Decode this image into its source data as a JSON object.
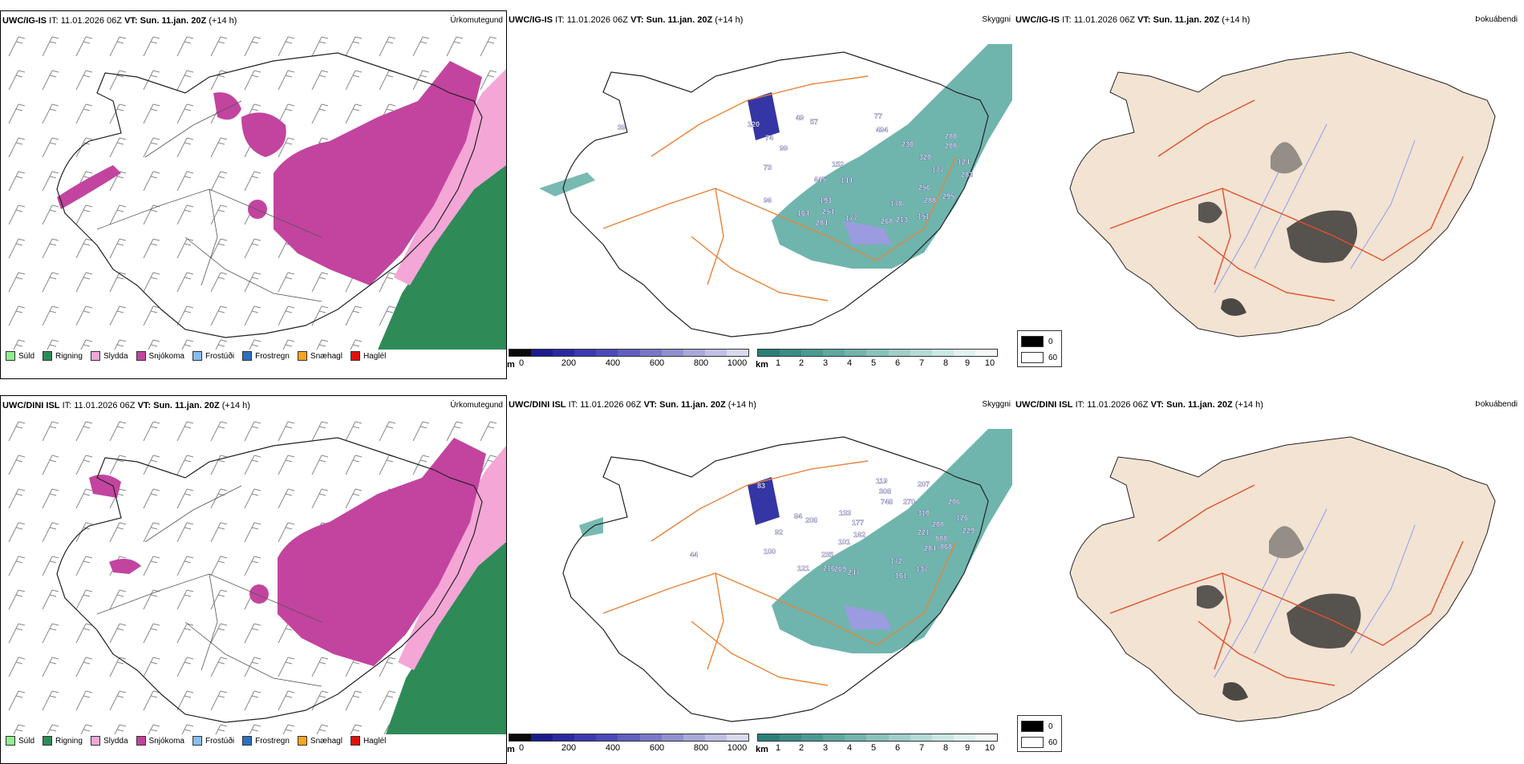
{
  "rows": [
    {
      "model": "UWC/IG-IS",
      "init_label": "IT:",
      "init_time": "11.01.2026 06Z",
      "valid_label": "VT:",
      "valid_time": "Sun. 11.jan. 20Z",
      "lead": "(+14 h)",
      "panel1_type": "Úrkomutegund",
      "panel2_type": "Skyggni",
      "panel3_type": "Þokuábendi",
      "visibility_labels": [
        "120",
        "74",
        "99",
        "73",
        "49",
        "152",
        "645",
        "144",
        "193",
        "254",
        "284",
        "164",
        "177",
        "268",
        "213",
        "96",
        "178",
        "151",
        "256",
        "288",
        "295",
        "280",
        "208",
        "124",
        "283",
        "177",
        "320",
        "77",
        "494",
        "230",
        "57",
        "39"
      ]
    },
    {
      "model": "UWC/DINI ISL",
      "init_label": "IT:",
      "init_time": "11.01.2026 06Z",
      "valid_label": "VT:",
      "valid_time": "Sun. 11.jan. 20Z",
      "lead": "(+14 h)",
      "panel1_type": "Úrkomutegund",
      "panel2_type": "Skyggni",
      "panel3_type": "Þokuábendi",
      "visibility_labels": [
        "83",
        "84",
        "92",
        "208",
        "133",
        "177",
        "162",
        "101",
        "235",
        "121",
        "216",
        "269",
        "247",
        "172",
        "161",
        "137",
        "100",
        "119",
        "308",
        "748",
        "270",
        "207",
        "310",
        "221",
        "208",
        "808",
        "868",
        "284",
        "206",
        "126",
        "229",
        "44"
      ]
    }
  ],
  "ptype_legend": [
    {
      "label": "Súld",
      "color": "#90ee90"
    },
    {
      "label": "Rigning",
      "color": "#2e8b57"
    },
    {
      "label": "Slydda",
      "color": "#f4a6d7"
    },
    {
      "label": "Snjókoma",
      "color": "#c2449f"
    },
    {
      "label": "Frostúði",
      "color": "#87bdf0"
    },
    {
      "label": "Frostregn",
      "color": "#2f6fbf"
    },
    {
      "label": "Snæhagl",
      "color": "#f5a623"
    },
    {
      "label": "Haglél",
      "color": "#e01010"
    }
  ],
  "elevation_bar": {
    "unit": "m",
    "ticks": [
      "0",
      "200",
      "400",
      "600",
      "800",
      "1000"
    ],
    "colors": [
      "#0a0a0a",
      "#1b1b8c",
      "#2a2aa0",
      "#3a3ab0",
      "#4a4ab8",
      "#6060c0",
      "#7878c8",
      "#9090d0",
      "#a8a8da",
      "#c0c0e4",
      "#d8d8ee"
    ]
  },
  "visibility_bar": {
    "unit": "km",
    "ticks": [
      "1",
      "2",
      "3",
      "4",
      "5",
      "6",
      "7",
      "8",
      "9",
      "10"
    ],
    "colors": [
      "#2a7f78",
      "#3b8c84",
      "#4b9a92",
      "#5ea8a0",
      "#72b4ad",
      "#88c2bb",
      "#9ecfc8",
      "#b4dbd6",
      "#cae7e3",
      "#e0f2ef",
      "#f4faf9"
    ]
  },
  "fog_legend": {
    "items": [
      {
        "label": "0",
        "color": "#000000"
      },
      {
        "label": "60",
        "color": "#ffffff"
      }
    ]
  },
  "colors": {
    "snow": "#c2449f",
    "sleet": "#f4a6d7",
    "rain": "#2e8b57",
    "visibility": "#3f9c92",
    "highland": "#3535a5",
    "roads": "#e8843a",
    "fog_land": "#f3e3d3",
    "fog_roads": "#e0502a",
    "rivers": "#8a9ef0"
  }
}
